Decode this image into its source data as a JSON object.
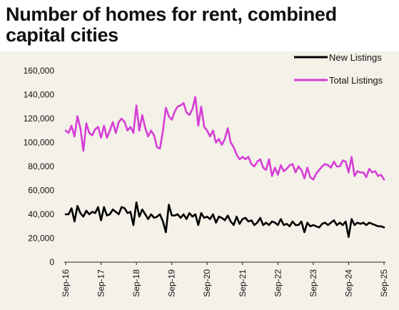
{
  "chart_data": {
    "type": "line",
    "title": "Number of homes for rent, combined capital cities",
    "xlabel": "",
    "ylabel": "",
    "ylim": [
      0,
      160000
    ],
    "yticks": [
      0,
      20000,
      40000,
      60000,
      80000,
      100000,
      120000,
      140000,
      160000
    ],
    "ytick_labels": [
      "0",
      "20,000",
      "40,000",
      "60,000",
      "80,000",
      "100,000",
      "120,000",
      "140,000",
      "160,000"
    ],
    "xlim": [
      2016.667,
      2025.667
    ],
    "xtick_labels": [
      "Sep-16",
      "Sep-17",
      "Sep-18",
      "Sep-19",
      "Sep-20",
      "Sep-21",
      "Sep-22",
      "Sep-23",
      "Sep-24",
      "Sep-25"
    ],
    "legend_position": "top-right",
    "grid": false,
    "series": [
      {
        "name": "New Listings",
        "color": "#000000",
        "x": [
          2016.667,
          2016.75,
          2016.833,
          2016.917,
          2017.0,
          2017.083,
          2017.167,
          2017.25,
          2017.333,
          2017.417,
          2017.5,
          2017.583,
          2017.667,
          2017.75,
          2017.833,
          2017.917,
          2018.0,
          2018.083,
          2018.167,
          2018.25,
          2018.333,
          2018.417,
          2018.5,
          2018.583,
          2018.667,
          2018.75,
          2018.833,
          2018.917,
          2019.0,
          2019.083,
          2019.167,
          2019.25,
          2019.333,
          2019.417,
          2019.5,
          2019.583,
          2019.667,
          2019.75,
          2019.833,
          2019.917,
          2020.0,
          2020.083,
          2020.167,
          2020.25,
          2020.333,
          2020.417,
          2020.5,
          2020.583,
          2020.667,
          2020.75,
          2020.833,
          2020.917,
          2021.0,
          2021.083,
          2021.167,
          2021.25,
          2021.333,
          2021.417,
          2021.5,
          2021.583,
          2021.667,
          2021.75,
          2021.833,
          2021.917,
          2022.0,
          2022.083,
          2022.167,
          2022.25,
          2022.333,
          2022.417,
          2022.5,
          2022.583,
          2022.667,
          2022.75,
          2022.833,
          2022.917,
          2023.0,
          2023.083,
          2023.167,
          2023.25,
          2023.333,
          2023.417,
          2023.5,
          2023.583,
          2023.667,
          2023.75,
          2023.833,
          2023.917,
          2024.0,
          2024.083,
          2024.167,
          2024.25,
          2024.333,
          2024.417,
          2024.5,
          2024.583,
          2024.667,
          2024.75,
          2024.833,
          2024.917,
          2025.0,
          2025.083,
          2025.167,
          2025.25,
          2025.333,
          2025.417,
          2025.5,
          2025.583,
          2025.667
        ],
        "values": [
          40000,
          40000,
          45000,
          34000,
          47000,
          41000,
          38000,
          43000,
          40000,
          42000,
          41000,
          46000,
          35000,
          46000,
          39000,
          40000,
          44000,
          42000,
          40000,
          46000,
          45000,
          41000,
          42000,
          31000,
          50000,
          38000,
          44000,
          40000,
          36000,
          40000,
          37000,
          38000,
          40000,
          34000,
          25000,
          48000,
          39000,
          39000,
          40000,
          37000,
          40000,
          36000,
          41000,
          38000,
          40000,
          31000,
          41000,
          37000,
          38000,
          36000,
          40000,
          33000,
          38000,
          37000,
          35000,
          39000,
          34000,
          31000,
          38000,
          32000,
          36000,
          37000,
          34000,
          35000,
          31000,
          33000,
          37000,
          31000,
          33000,
          31000,
          34000,
          33000,
          31000,
          36000,
          31000,
          32000,
          30000,
          34000,
          31000,
          31000,
          34000,
          25000,
          33000,
          30000,
          31000,
          30000,
          29000,
          32000,
          33000,
          31000,
          33000,
          35000,
          31000,
          33000,
          31000,
          34000,
          21000,
          36000,
          31000,
          33000,
          32000,
          33000,
          31000,
          33000,
          32000,
          31000,
          30000,
          30000,
          29000
        ]
      },
      {
        "name": "Total Listings",
        "color": "#d63ed6",
        "x": [
          2016.667,
          2016.75,
          2016.833,
          2016.917,
          2017.0,
          2017.083,
          2017.167,
          2017.25,
          2017.333,
          2017.417,
          2017.5,
          2017.583,
          2017.667,
          2017.75,
          2017.833,
          2017.917,
          2018.0,
          2018.083,
          2018.167,
          2018.25,
          2018.333,
          2018.417,
          2018.5,
          2018.583,
          2018.667,
          2018.75,
          2018.833,
          2018.917,
          2019.0,
          2019.083,
          2019.167,
          2019.25,
          2019.333,
          2019.417,
          2019.5,
          2019.583,
          2019.667,
          2019.75,
          2019.833,
          2019.917,
          2020.0,
          2020.083,
          2020.167,
          2020.25,
          2020.333,
          2020.417,
          2020.5,
          2020.583,
          2020.667,
          2020.75,
          2020.833,
          2020.917,
          2021.0,
          2021.083,
          2021.167,
          2021.25,
          2021.333,
          2021.417,
          2021.5,
          2021.583,
          2021.667,
          2021.75,
          2021.833,
          2021.917,
          2022.0,
          2022.083,
          2022.167,
          2022.25,
          2022.333,
          2022.417,
          2022.5,
          2022.583,
          2022.667,
          2022.75,
          2022.833,
          2022.917,
          2023.0,
          2023.083,
          2023.167,
          2023.25,
          2023.333,
          2023.417,
          2023.5,
          2023.583,
          2023.667,
          2023.75,
          2023.833,
          2023.917,
          2024.0,
          2024.083,
          2024.167,
          2024.25,
          2024.333,
          2024.417,
          2024.5,
          2024.583,
          2024.667,
          2024.75,
          2024.833,
          2024.917,
          2025.0,
          2025.083,
          2025.167,
          2025.25,
          2025.333,
          2025.417,
          2025.5,
          2025.583,
          2025.667
        ],
        "values": [
          110000,
          108000,
          114000,
          105000,
          122000,
          112000,
          93000,
          116000,
          108000,
          106000,
          111000,
          113000,
          104000,
          114000,
          104000,
          110000,
          117000,
          108000,
          117000,
          120000,
          117000,
          110000,
          113000,
          108000,
          131000,
          110000,
          123000,
          112000,
          105000,
          110000,
          106000,
          96000,
          95000,
          110000,
          129000,
          122000,
          119000,
          126000,
          130000,
          131000,
          133000,
          125000,
          123000,
          128000,
          138000,
          114000,
          130000,
          113000,
          110000,
          105000,
          110000,
          100000,
          103000,
          98000,
          103000,
          112000,
          100000,
          96000,
          90000,
          86000,
          88000,
          86000,
          88000,
          82000,
          80000,
          84000,
          86000,
          79000,
          77000,
          86000,
          72000,
          79000,
          73000,
          81000,
          76000,
          78000,
          81000,
          82000,
          75000,
          80000,
          77000,
          70000,
          79000,
          71000,
          69000,
          74000,
          77000,
          80000,
          82000,
          81000,
          79000,
          84000,
          80000,
          80000,
          85000,
          84000,
          75000,
          88000,
          72000,
          76000,
          75000,
          75000,
          71000,
          78000,
          75000,
          76000,
          72000,
          73000,
          69000
        ]
      }
    ]
  }
}
